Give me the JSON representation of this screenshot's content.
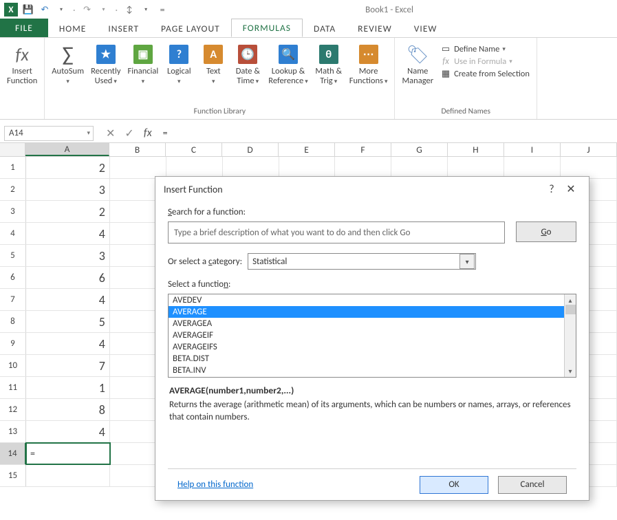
{
  "app": {
    "title": "Book1 - Excel"
  },
  "qat": {
    "excel_icon": "X",
    "save": "💾",
    "redo_dd": "▾",
    "undo": "↶",
    "redo": "↷",
    "touch": "✥"
  },
  "tabs": {
    "file": "FILE",
    "home": "HOME",
    "insert": "INSERT",
    "page_layout": "PAGE LAYOUT",
    "formulas": "FORMULAS",
    "data": "DATA",
    "review": "REVIEW",
    "view": "VIEW"
  },
  "ribbon": {
    "insert_function": "Insert\nFunction",
    "autosum": "AutoSum",
    "recently_used": "Recently\nUsed",
    "financial": "Financial",
    "logical": "Logical",
    "text": "Text",
    "date_time": "Date &\nTime",
    "lookup_ref": "Lookup &\nReference",
    "math_trig": "Math &\nTrig",
    "more_functions": "More\nFunctions",
    "function_library_label": "Function Library",
    "name_manager": "Name\nManager",
    "define_name": "Define Name",
    "use_in_formula": "Use in Formula",
    "create_from_selection": "Create from Selection",
    "defined_names_label": "Defined Names"
  },
  "ribbon_colors": {
    "recently_used": "#2f7fd1",
    "financial": "#5fa641",
    "logical": "#2f7fd1",
    "text": "#d68a2f",
    "date_time": "#b84f3a",
    "lookup_ref": "#2f7fd1",
    "math_trig": "#2c7a6f",
    "more_functions": "#d68a2f"
  },
  "name_box": {
    "value": "A14"
  },
  "formula_bar": {
    "cancel": "✕",
    "accept": "✓",
    "fx": "fx",
    "value": "="
  },
  "columns": [
    "A",
    "B",
    "C",
    "D",
    "E",
    "F",
    "G",
    "H",
    "I",
    "J"
  ],
  "rows": [
    {
      "n": 1,
      "a": "2"
    },
    {
      "n": 2,
      "a": "3"
    },
    {
      "n": 3,
      "a": "2"
    },
    {
      "n": 4,
      "a": "4"
    },
    {
      "n": 5,
      "a": "3"
    },
    {
      "n": 6,
      "a": "6"
    },
    {
      "n": 7,
      "a": "4"
    },
    {
      "n": 8,
      "a": "5"
    },
    {
      "n": 9,
      "a": "4"
    },
    {
      "n": 10,
      "a": "7"
    },
    {
      "n": 11,
      "a": "1"
    },
    {
      "n": 12,
      "a": "8"
    },
    {
      "n": 13,
      "a": "4"
    },
    {
      "n": 14,
      "a": "="
    },
    {
      "n": 15,
      "a": ""
    }
  ],
  "dialog": {
    "title": "Insert Function",
    "help_icon": "?",
    "close_icon": "✕",
    "search_label_pre": "S",
    "search_label_post": "earch for a function:",
    "search_placeholder": "Type a brief description of what you want to do and then click Go",
    "go_pre": "G",
    "go_post": "o",
    "category_label": "Or select a ",
    "category_ul": "c",
    "category_post": "ategory:",
    "category_value": "Statistical",
    "select_fn_label": "Select a functio",
    "select_fn_ul": "n",
    "select_fn_post": ":",
    "functions": [
      "AVEDEV",
      "AVERAGE",
      "AVERAGEA",
      "AVERAGEIF",
      "AVERAGEIFS",
      "BETA.DIST",
      "BETA.INV"
    ],
    "selected_index": 1,
    "signature": "AVERAGE(number1,number2,...)",
    "description": "Returns the average (arithmetic mean) of its arguments, which can be numbers or names, arrays, or references that contain numbers.",
    "help_link": "Help on this function",
    "ok": "OK",
    "cancel": "Cancel"
  }
}
